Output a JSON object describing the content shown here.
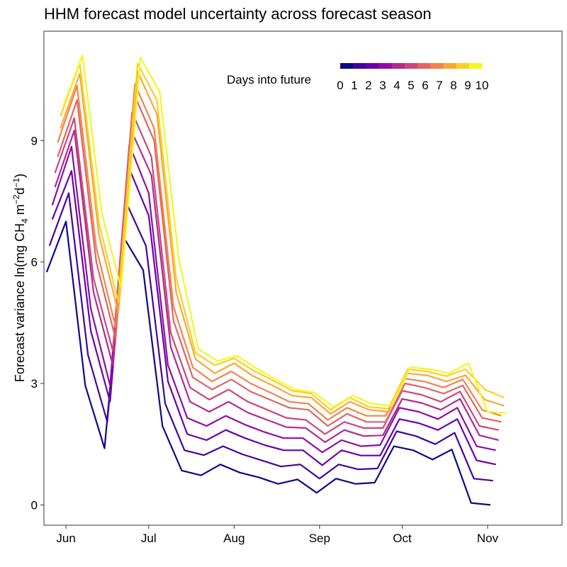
{
  "chart_data": {
    "type": "line",
    "title": "HHM forecast model uncertainty across forecast season",
    "ylabel": {
      "prefix": "Forecast variance ln(mg CH",
      "sub": "4",
      "mid": " m",
      "sup1": "−2",
      "mid2": "d",
      "sup2": "−1",
      "suffix": ")"
    },
    "xlabel": "",
    "ylim": [
      -0.5,
      11.7
    ],
    "y_ticks": [
      0,
      3,
      6,
      9
    ],
    "y_tick_labels": [
      "0",
      "3",
      "6",
      "9"
    ],
    "x_ticks": [
      "2021-06-01",
      "2021-07-01",
      "2021-08-01",
      "2021-09-01",
      "2021-10-01",
      "2021-11-01"
    ],
    "x_tick_labels": [
      "Jun",
      "Jul",
      "Aug",
      "Sep",
      "Oct",
      "Nov"
    ],
    "xlim": [
      "2021-05-24",
      "2021-11-28"
    ],
    "grid": false,
    "legend": {
      "title": "Days into future",
      "placement": "top-right",
      "labels": [
        "0",
        "1",
        "2",
        "3",
        "4",
        "5",
        "6",
        "7",
        "8",
        "9",
        "10"
      ]
    },
    "colors": [
      "#0d0887",
      "#41049d",
      "#6a00a8",
      "#8f0da4",
      "#b12a90",
      "#cc4778",
      "#e16462",
      "#f2844b",
      "#fca636",
      "#fcce25",
      "#f0f921"
    ],
    "series": [
      {
        "name": "0",
        "start": "2021-05-25",
        "values": [
          5.75,
          7.0,
          2.95,
          1.4,
          6.6,
          5.8,
          1.95,
          0.85,
          0.73,
          1.0,
          0.8,
          0.68,
          0.52,
          0.63,
          0.3,
          0.65,
          0.52,
          0.55,
          1.45,
          1.35,
          1.12,
          1.37,
          0.05,
          0.0
        ]
      },
      {
        "name": "1",
        "start": "2021-05-26",
        "values": [
          6.4,
          7.7,
          3.7,
          2.05,
          7.45,
          6.4,
          2.5,
          1.35,
          1.23,
          1.45,
          1.25,
          1.1,
          0.95,
          1.0,
          0.65,
          1.0,
          0.88,
          0.9,
          1.82,
          1.7,
          1.5,
          1.78,
          0.65,
          0.6
        ]
      },
      {
        "name": "2",
        "start": "2021-05-27",
        "values": [
          7.05,
          8.25,
          4.3,
          2.55,
          8.3,
          7.15,
          3.05,
          1.75,
          1.6,
          1.85,
          1.65,
          1.48,
          1.35,
          1.35,
          0.98,
          1.35,
          1.22,
          1.22,
          2.12,
          2.02,
          1.85,
          2.12,
          1.1,
          1.0
        ]
      },
      {
        "name": "3",
        "start": "2021-05-27",
        "values": [
          7.4,
          8.85,
          4.85,
          2.95,
          8.9,
          7.7,
          3.45,
          2.15,
          1.95,
          2.2,
          1.98,
          1.8,
          1.65,
          1.65,
          1.3,
          1.6,
          1.45,
          1.48,
          2.4,
          2.3,
          2.12,
          2.4,
          1.45,
          1.35
        ]
      },
      {
        "name": "4",
        "start": "2021-05-28",
        "values": [
          7.85,
          9.25,
          5.25,
          3.45,
          9.2,
          8.15,
          3.9,
          2.55,
          2.3,
          2.55,
          2.28,
          2.1,
          1.92,
          1.9,
          1.55,
          1.85,
          1.7,
          1.72,
          2.62,
          2.52,
          2.35,
          2.62,
          1.72,
          1.6
        ]
      },
      {
        "name": "5",
        "start": "2021-05-28",
        "values": [
          8.2,
          9.55,
          5.6,
          3.8,
          9.7,
          8.6,
          4.25,
          2.9,
          2.6,
          2.85,
          2.55,
          2.35,
          2.15,
          2.1,
          1.75,
          2.05,
          1.9,
          1.9,
          2.82,
          2.72,
          2.55,
          2.8,
          1.95,
          1.85
        ]
      },
      {
        "name": "6",
        "start": "2021-05-29",
        "values": [
          8.6,
          10.0,
          6.0,
          4.1,
          10.1,
          9.0,
          4.55,
          3.15,
          2.85,
          3.1,
          2.8,
          2.6,
          2.4,
          2.35,
          1.95,
          2.25,
          2.05,
          2.05,
          3.0,
          2.9,
          2.75,
          2.95,
          2.15,
          2.05
        ]
      },
      {
        "name": "7",
        "start": "2021-05-29",
        "values": [
          8.95,
          10.35,
          6.35,
          4.4,
          10.4,
          9.3,
          4.9,
          3.4,
          3.05,
          3.3,
          3.0,
          2.78,
          2.55,
          2.5,
          2.1,
          2.4,
          2.2,
          2.2,
          3.12,
          3.05,
          2.9,
          3.1,
          2.35,
          2.2
        ]
      },
      {
        "name": "8",
        "start": "2021-05-30",
        "values": [
          9.3,
          10.65,
          6.65,
          4.75,
          10.7,
          9.65,
          5.25,
          3.6,
          3.25,
          3.5,
          3.18,
          2.95,
          2.7,
          2.65,
          2.25,
          2.55,
          2.35,
          2.3,
          3.25,
          3.2,
          3.05,
          3.2,
          2.6,
          2.45
        ]
      },
      {
        "name": "9",
        "start": "2021-05-30",
        "values": [
          9.6,
          10.9,
          6.95,
          5.0,
          10.9,
          10.0,
          5.6,
          3.75,
          3.45,
          3.62,
          3.32,
          3.08,
          2.82,
          2.75,
          2.35,
          2.65,
          2.42,
          2.38,
          3.35,
          3.3,
          3.18,
          3.35,
          2.85,
          2.65
        ]
      },
      {
        "name": "10",
        "start": "2021-05-31",
        "values": [
          9.85,
          11.1,
          7.2,
          5.35,
          11.05,
          10.2,
          6.05,
          3.85,
          3.55,
          3.68,
          3.38,
          3.1,
          2.85,
          2.78,
          2.42,
          2.7,
          2.5,
          2.45,
          3.4,
          3.35,
          3.25,
          3.5,
          2.3,
          2.27
        ]
      }
    ]
  }
}
